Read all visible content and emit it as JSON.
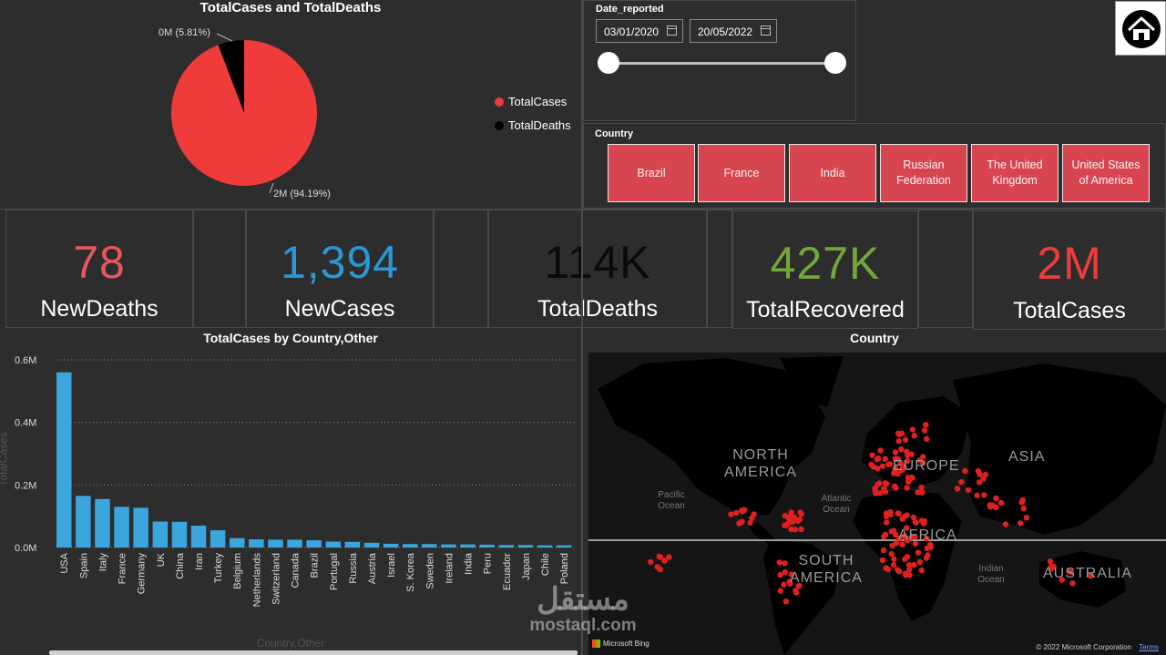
{
  "pie": {
    "title": "TotalCases and TotalDeaths",
    "slices": [
      {
        "name": "TotalCases",
        "percent": 94.19,
        "label": "2M (94.19%)",
        "color": "#f03b3b"
      },
      {
        "name": "TotalDeaths",
        "percent": 5.81,
        "label": "0M (5.81%)",
        "color": "#000000"
      }
    ],
    "legend": [
      "TotalCases",
      "TotalDeaths"
    ]
  },
  "date_slicer": {
    "label": "Date_reported",
    "start": "03/01/2020",
    "end": "20/05/2022"
  },
  "country_slicer": {
    "label": "Country",
    "options": [
      "Brazil",
      "France",
      "India",
      "Russian Federation",
      "The United Kingdom",
      "United States of America"
    ],
    "tile_color": "#d64550"
  },
  "kpis": [
    {
      "value": "78",
      "label": "NewDeaths",
      "color": "#e8555a"
    },
    {
      "value": "1,394",
      "label": "NewCases",
      "color": "#2a97d6"
    },
    {
      "value": "114K",
      "label": "TotalDeaths",
      "color": "#0a0a0a"
    },
    {
      "value": "427K",
      "label": "TotalRecovered",
      "color": "#71a83a"
    },
    {
      "value": "2M",
      "label": "TotalCases",
      "color": "#f03b3b"
    }
  ],
  "map": {
    "title": "Country",
    "continents": [
      "NORTH AMERICA",
      "EUROPE",
      "ASIA",
      "AFRICA",
      "SOUTH AMERICA",
      "AUSTRALIA"
    ],
    "oceans": [
      "Pacific Ocean",
      "Atlantic Ocean",
      "Indian Ocean"
    ],
    "attribution": "© 2022 Microsoft Corporation",
    "terms": "Terms",
    "brand": "Microsoft Bing"
  },
  "home_icon": "home-icon",
  "watermark": {
    "arabic": "مستقل",
    "latin": "mostaql.com"
  },
  "chart_data": {
    "type": "bar",
    "title": "TotalCases by Country,Other",
    "xlabel": "Country,Other",
    "ylabel": "TotalCases",
    "ylim": [
      0,
      0.6
    ],
    "yticks": [
      "0.0M",
      "0.2M",
      "0.4M",
      "0.6M"
    ],
    "grid": true,
    "color": "#3aa6dd",
    "categories": [
      "USA",
      "Spain",
      "Italy",
      "France",
      "Germany",
      "UK",
      "China",
      "Iran",
      "Turkey",
      "Belgium",
      "Netherlands",
      "Switzerland",
      "Canada",
      "Brazil",
      "Portugal",
      "Russia",
      "Austria",
      "Israel",
      "S. Korea",
      "Sweden",
      "Ireland",
      "India",
      "Peru",
      "Ecuador",
      "Japan",
      "Chile",
      "Poland"
    ],
    "values": [
      0.56,
      0.165,
      0.155,
      0.13,
      0.127,
      0.083,
      0.082,
      0.07,
      0.055,
      0.03,
      0.026,
      0.025,
      0.025,
      0.023,
      0.019,
      0.018,
      0.015,
      0.012,
      0.011,
      0.011,
      0.01,
      0.01,
      0.009,
      0.008,
      0.008,
      0.007,
      0.007
    ]
  }
}
